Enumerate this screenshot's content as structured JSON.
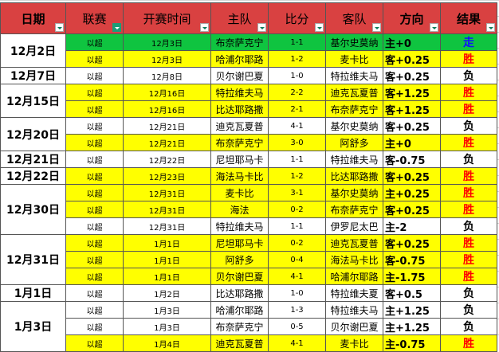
{
  "headers": [
    "日期",
    "联赛",
    "开赛时间",
    "主队",
    "比分",
    "客队",
    "方向",
    "结果"
  ],
  "colors": {
    "header": "#d94141",
    "green": "#0fc440",
    "yellow": "#ffff00",
    "white": "#ffffff"
  },
  "date_groups": [
    {
      "date": "12月2日",
      "rows": 2
    },
    {
      "date": "12月7日",
      "rows": 1
    },
    {
      "date": "12月15日",
      "rows": 2
    },
    {
      "date": "12月20日",
      "rows": 2
    },
    {
      "date": "12月21日",
      "rows": 1
    },
    {
      "date": "12月22日",
      "rows": 1
    },
    {
      "date": "12月30日",
      "rows": 3
    },
    {
      "date": "12月31日",
      "rows": 3
    },
    {
      "date": "1月1日",
      "rows": 1
    },
    {
      "date": "1月3日",
      "rows": 3
    }
  ],
  "rows": [
    {
      "league": "以超",
      "time": "12月3日",
      "home": "布奈萨克宁",
      "score": "1-1",
      "away": "基尔史莫纳",
      "dir": "主+0",
      "result": "走",
      "fill": "green"
    },
    {
      "league": "以超",
      "time": "12月3日",
      "home": "哈浦尔耶路",
      "score": "1-2",
      "away": "麦卡比",
      "dir": "客+0.25",
      "result": "胜",
      "fill": "yellow"
    },
    {
      "league": "以超",
      "time": "12月8日",
      "home": "贝尔谢巴夏",
      "score": "1-0",
      "away": "特拉维夫马",
      "dir": "客+0.25",
      "result": "负",
      "fill": "white"
    },
    {
      "league": "以超",
      "time": "12月16日",
      "home": "特拉维夫马",
      "score": "2-2",
      "away": "迪克瓦夏普",
      "dir": "客+1.25",
      "result": "胜",
      "fill": "yellow"
    },
    {
      "league": "以超",
      "time": "12月16日",
      "home": "比达耶路撒",
      "score": "2-1",
      "away": "布奈萨克宁",
      "dir": "客+1.25",
      "result": "胜",
      "fill": "yellow"
    },
    {
      "league": "以超",
      "time": "12月21日",
      "home": "迪克瓦夏普",
      "score": "4-1",
      "away": "基尔史莫纳",
      "dir": "客+0.25",
      "result": "负",
      "fill": "white"
    },
    {
      "league": "以超",
      "time": "12月21日",
      "home": "布奈萨克宁",
      "score": "3-0",
      "away": "阿舒多",
      "dir": "主+0",
      "result": "胜",
      "fill": "yellow"
    },
    {
      "league": "以超",
      "time": "12月22日",
      "home": "尼坦耶马卡",
      "score": "1-1",
      "away": "特拉维夫马",
      "dir": "客-0.75",
      "result": "负",
      "fill": "white"
    },
    {
      "league": "以超",
      "time": "12月23日",
      "home": "海法马卡比",
      "score": "1-2",
      "away": "比达耶路撒",
      "dir": "客+0.25",
      "result": "胜",
      "fill": "yellow"
    },
    {
      "league": "以超",
      "time": "12月31日",
      "home": "麦卡比",
      "score": "3-1",
      "away": "基尔史莫纳",
      "dir": "主+0.25",
      "result": "胜",
      "fill": "yellow"
    },
    {
      "league": "以超",
      "time": "12月31日",
      "home": "海法",
      "score": "0-2",
      "away": "布奈萨克宁",
      "dir": "客+0.25",
      "result": "胜",
      "fill": "yellow"
    },
    {
      "league": "以超",
      "time": "12月31日",
      "home": "特拉维夫马",
      "score": "1-1",
      "away": "伊罗尼太巴",
      "dir": "主-2",
      "result": "负",
      "fill": "white"
    },
    {
      "league": "以超",
      "time": "1月1日",
      "home": "尼坦耶马卡",
      "score": "0-2",
      "away": "迪克瓦夏普",
      "dir": "客+0.25",
      "result": "胜",
      "fill": "yellow"
    },
    {
      "league": "以超",
      "time": "1月1日",
      "home": "阿舒多",
      "score": "0-4",
      "away": "海法马卡比",
      "dir": "客-0.75",
      "result": "胜",
      "fill": "yellow"
    },
    {
      "league": "以超",
      "time": "1月1日",
      "home": "贝尔谢巴夏",
      "score": "4-1",
      "away": "哈浦尔耶路",
      "dir": "主-1.75",
      "result": "胜",
      "fill": "yellow"
    },
    {
      "league": "以超",
      "time": "1月2日",
      "home": "比达耶路撒",
      "score": "1-0",
      "away": "特拉维夫夏",
      "dir": "客+0.5",
      "result": "负",
      "fill": "white"
    },
    {
      "league": "以超",
      "time": "1月3日",
      "home": "哈浦尔耶路",
      "score": "1-3",
      "away": "特拉维夫马",
      "dir": "主+1.25",
      "result": "负",
      "fill": "white"
    },
    {
      "league": "以超",
      "time": "1月3日",
      "home": "布奈萨克宁",
      "score": "0-5",
      "away": "贝尔谢巴夏",
      "dir": "主+1.25",
      "result": "负",
      "fill": "white"
    },
    {
      "league": "以超",
      "time": "1月4日",
      "home": "迪克瓦夏普",
      "score": "4-1",
      "away": "麦卡比",
      "dir": "主-0.75",
      "result": "胜",
      "fill": "yellow"
    }
  ]
}
